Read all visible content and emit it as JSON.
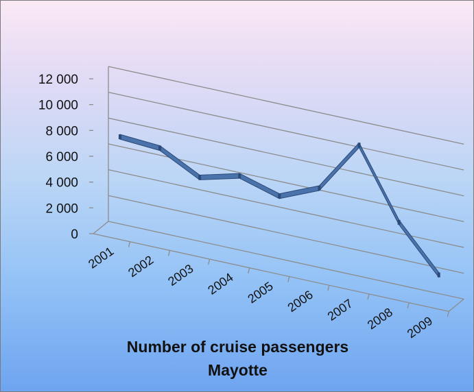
{
  "chart_data": {
    "type": "line",
    "categories": [
      "2001",
      "2002",
      "2003",
      "2004",
      "2005",
      "2006",
      "2007",
      "2008",
      "2009"
    ],
    "values": [
      7600,
      7400,
      5800,
      6600,
      5700,
      7000,
      11000,
      5700,
      2300
    ],
    "title_line1": "Number of  cruise passengers",
    "title_line2": "Mayotte",
    "y_ticks": [
      "0",
      "2 000",
      "4 000",
      "6 000",
      "8 000",
      "10 000",
      "12 000"
    ],
    "ylim": [
      0,
      12000
    ],
    "grid": true,
    "legend": "none",
    "colors": {
      "line": "#4a73ac",
      "line_dark": "#2b4a78",
      "grid": "#8c8c8c"
    }
  }
}
